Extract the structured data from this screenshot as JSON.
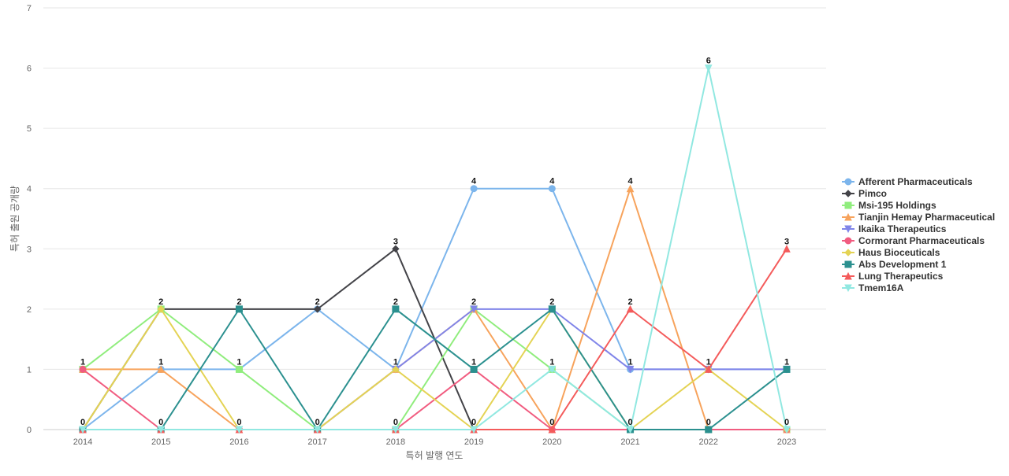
{
  "chart_data": {
    "type": "line",
    "title": "",
    "xlabel": "특허 발행 연도",
    "ylabel": "특허 출원 공개량",
    "ylim": [
      0,
      7
    ],
    "yticks": [
      "0",
      "1",
      "2",
      "3",
      "4",
      "5",
      "6",
      "7"
    ],
    "categories": [
      "2014",
      "2015",
      "2016",
      "2017",
      "2018",
      "2019",
      "2020",
      "2021",
      "2022",
      "2023"
    ],
    "grid": "horizontal",
    "legend_position": "right",
    "series": [
      {
        "name": "Afferent Pharmaceuticals",
        "color": "#7cb5ec",
        "marker": "circle",
        "values": [
          0,
          1,
          1,
          2,
          1,
          4,
          4,
          1,
          1,
          1
        ]
      },
      {
        "name": "Pimco",
        "color": "#434348",
        "marker": "diamond",
        "values": [
          0,
          2,
          2,
          2,
          3,
          0,
          0,
          0,
          0,
          0
        ]
      },
      {
        "name": "Msi-195 Holdings",
        "color": "#90ed7d",
        "marker": "square",
        "values": [
          1,
          2,
          1,
          0,
          0,
          2,
          1,
          0,
          0,
          0
        ]
      },
      {
        "name": "Tianjin Hemay Pharmaceutical",
        "color": "#f7a35c",
        "marker": "triangle",
        "values": [
          1,
          1,
          0,
          0,
          1,
          2,
          0,
          4,
          0,
          0
        ]
      },
      {
        "name": "Ikaika Therapeutics",
        "color": "#8085e9",
        "marker": "triangle-down",
        "values": [
          0,
          0,
          0,
          0,
          1,
          2,
          2,
          1,
          1,
          1
        ]
      },
      {
        "name": "Cormorant Pharmaceuticals",
        "color": "#f15c80",
        "marker": "circle",
        "values": [
          1,
          0,
          0,
          0,
          0,
          1,
          0,
          0,
          0,
          0
        ]
      },
      {
        "name": "Haus Bioceuticals",
        "color": "#e4d354",
        "marker": "diamond",
        "values": [
          0,
          2,
          0,
          0,
          1,
          0,
          2,
          0,
          1,
          0
        ]
      },
      {
        "name": "Abs Development 1",
        "color": "#2b908f",
        "marker": "square",
        "values": [
          0,
          0,
          2,
          0,
          2,
          1,
          2,
          0,
          0,
          1
        ]
      },
      {
        "name": "Lung Therapeutics",
        "color": "#f45b5b",
        "marker": "triangle",
        "values": [
          0,
          0,
          0,
          0,
          0,
          0,
          0,
          2,
          1,
          3
        ]
      },
      {
        "name": "Tmem16A",
        "color": "#91e8e1",
        "marker": "triangle-down",
        "values": [
          0,
          0,
          0,
          0,
          0,
          0,
          1,
          0,
          6,
          0
        ]
      }
    ],
    "data_labels": [
      {
        "category": "2014",
        "values": [
          "1",
          "0"
        ]
      },
      {
        "category": "2015",
        "values": [
          "2",
          "1",
          "0"
        ]
      },
      {
        "category": "2016",
        "values": [
          "2",
          "1",
          "0"
        ]
      },
      {
        "category": "2017",
        "values": [
          "2",
          "0"
        ]
      },
      {
        "category": "2018",
        "values": [
          "3",
          "2",
          "1",
          "0"
        ]
      },
      {
        "category": "2019",
        "values": [
          "4",
          "2",
          "1",
          "0"
        ]
      },
      {
        "category": "2020",
        "values": [
          "4",
          "2",
          "1",
          "0"
        ]
      },
      {
        "category": "2021",
        "values": [
          "4",
          "2",
          "1",
          "0"
        ]
      },
      {
        "category": "2022",
        "values": [
          "6",
          "1",
          "0"
        ]
      },
      {
        "category": "2023",
        "values": [
          "3",
          "1",
          "0"
        ]
      }
    ]
  }
}
